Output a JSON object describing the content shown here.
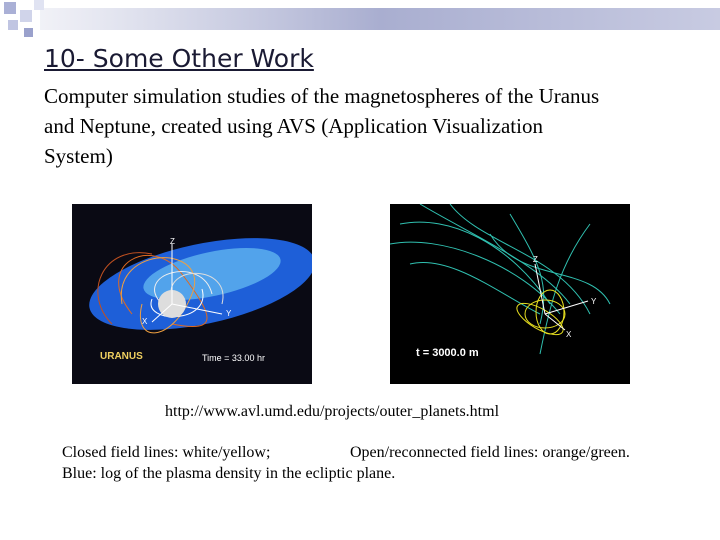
{
  "header": {
    "title": "10- Some Other Work"
  },
  "body": {
    "lines": [
      "Computer simulation studies of the magnetospheres of the Uranus",
      "and Neptune, created using AVS (Application Visualization",
      "System)"
    ]
  },
  "images": [
    {
      "labels": [
        "Z",
        "Y",
        "X",
        "URANUS",
        "Time = 33.00 hr"
      ]
    },
    {
      "labels": [
        "Z",
        "Y",
        "X",
        "t = 3000.0 m"
      ]
    }
  ],
  "link": "http://www.avl.umd.edu/projects/outer_planets.html",
  "caption": {
    "closed": "Closed field lines: white/yellow;",
    "open": "Open/reconnected field lines: orange/green.",
    "blue": "Blue: log of the plasma density in the ecliptic plane."
  }
}
